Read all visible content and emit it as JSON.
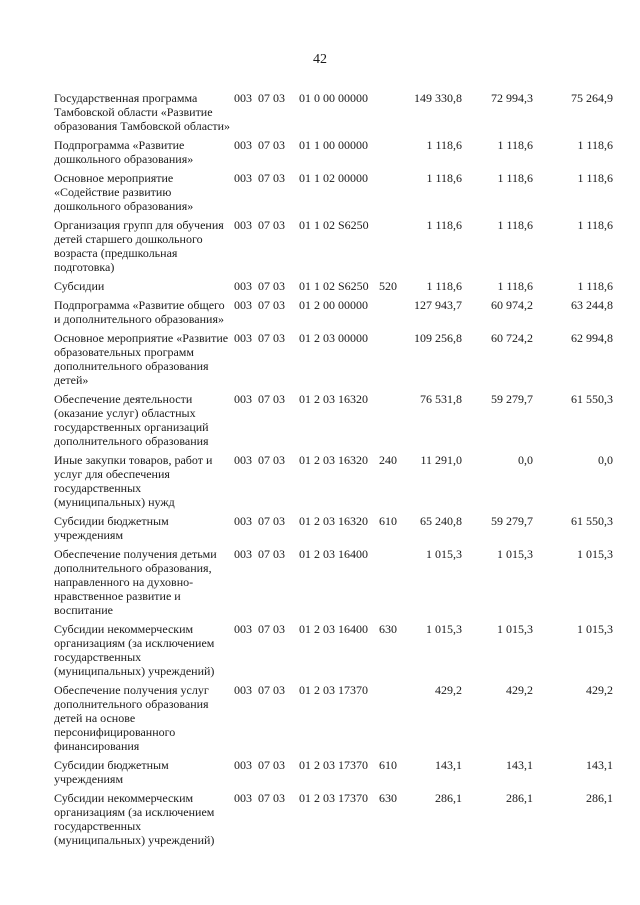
{
  "page_number": "42",
  "rows": [
    {
      "name": "Государственная программа Тамбовской области «Развитие образования Тамбовской области»",
      "grbs": "003",
      "section": "07 03",
      "csr": "01 0 00 00000",
      "vr": "",
      "y1": "149 330,8",
      "y2": "72 994,3",
      "y3": "75 264,9"
    },
    {
      "name": "Подпрограмма «Развитие дошкольного образования»",
      "grbs": "003",
      "section": "07 03",
      "csr": "01 1 00 00000",
      "vr": "",
      "y1": "1 118,6",
      "y2": "1 118,6",
      "y3": "1 118,6"
    },
    {
      "name": "Основное мероприятие «Содействие развитию дошкольного образования»",
      "grbs": "003",
      "section": "07 03",
      "csr": "01 1 02 00000",
      "vr": "",
      "y1": "1 118,6",
      "y2": "1 118,6",
      "y3": "1 118,6"
    },
    {
      "name": "Организация групп для обучения детей старшего дошкольного возраста (предшкольная подготовка)",
      "grbs": "003",
      "section": "07 03",
      "csr": "01 1 02 S6250",
      "vr": "",
      "y1": "1 118,6",
      "y2": "1 118,6",
      "y3": "1 118,6"
    },
    {
      "name": "Субсидии",
      "grbs": "003",
      "section": "07 03",
      "csr": "01 1 02 S6250",
      "vr": "520",
      "y1": "1 118,6",
      "y2": "1 118,6",
      "y3": "1 118,6"
    },
    {
      "name": "Подпрограмма «Развитие общего и дополнительного образования»",
      "grbs": "003",
      "section": "07 03",
      "csr": "01 2 00 00000",
      "vr": "",
      "y1": "127 943,7",
      "y2": "60 974,2",
      "y3": "63 244,8"
    },
    {
      "name": "Основное мероприятие «Развитие образовательных программ дополнительного образования детей»",
      "grbs": "003",
      "section": "07 03",
      "csr": "01 2 03 00000",
      "vr": "",
      "y1": "109 256,8",
      "y2": "60 724,2",
      "y3": "62 994,8"
    },
    {
      "name": "Обеспечение деятельности (оказание услуг) областных государственных организаций дополнительного образования",
      "grbs": "003",
      "section": "07 03",
      "csr": "01 2 03 16320",
      "vr": "",
      "y1": "76 531,8",
      "y2": "59 279,7",
      "y3": "61 550,3"
    },
    {
      "name": "Иные закупки товаров, работ и услуг для обеспечения государственных (муниципальных) нужд",
      "grbs": "003",
      "section": "07 03",
      "csr": "01 2 03 16320",
      "vr": "240",
      "y1": "11 291,0",
      "y2": "0,0",
      "y3": "0,0"
    },
    {
      "name": "Субсидии бюджетным учреждениям",
      "grbs": "003",
      "section": "07 03",
      "csr": "01 2 03 16320",
      "vr": "610",
      "y1": "65 240,8",
      "y2": "59 279,7",
      "y3": "61 550,3"
    },
    {
      "name": "Обеспечение получения детьми дополнительного образования, направленного на духовно-нравственное развитие и воспитание",
      "grbs": "003",
      "section": "07 03",
      "csr": "01 2 03 16400",
      "vr": "",
      "y1": "1 015,3",
      "y2": "1 015,3",
      "y3": "1 015,3"
    },
    {
      "name": "Субсидии некоммерческим организациям (за исключением государственных (муниципальных) учреждений)",
      "grbs": "003",
      "section": "07 03",
      "csr": "01 2 03 16400",
      "vr": "630",
      "y1": "1 015,3",
      "y2": "1 015,3",
      "y3": "1 015,3"
    },
    {
      "name": "Обеспечение получения услуг дополнительного образования детей на основе персонифицированного финансирования",
      "grbs": "003",
      "section": "07 03",
      "csr": "01 2 03 17370",
      "vr": "",
      "y1": "429,2",
      "y2": "429,2",
      "y3": "429,2"
    },
    {
      "name": "Субсидии бюджетным учреждениям",
      "grbs": "003",
      "section": "07 03",
      "csr": "01 2 03 17370",
      "vr": "610",
      "y1": "143,1",
      "y2": "143,1",
      "y3": "143,1"
    },
    {
      "name": "Субсидии некоммерческим организациям (за исключением государственных (муниципальных) учреждений)",
      "grbs": "003",
      "section": "07 03",
      "csr": "01 2 03 17370",
      "vr": "630",
      "y1": "286,1",
      "y2": "286,1",
      "y3": "286,1"
    }
  ]
}
